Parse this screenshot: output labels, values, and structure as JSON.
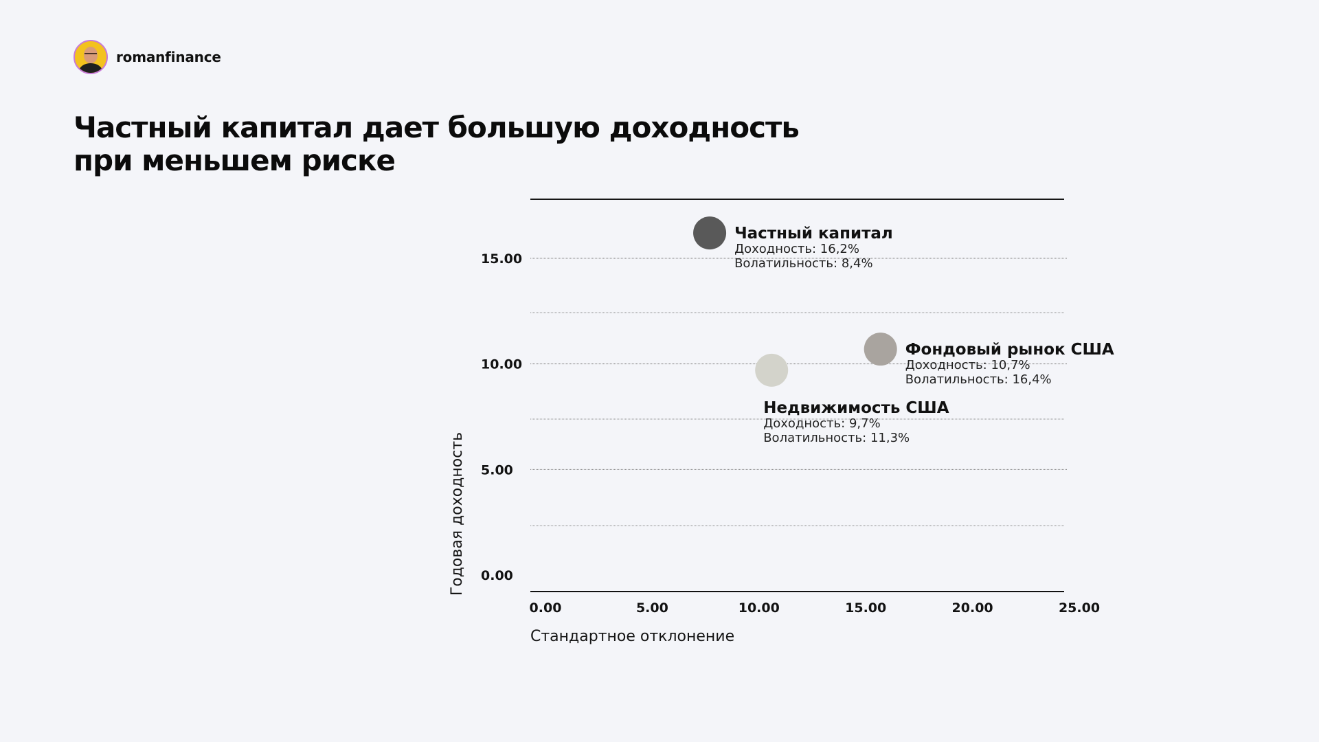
{
  "brand": {
    "name": "romanfinance"
  },
  "title": {
    "line1": "Частный капитал дает большую доходность",
    "line2": "при меньшем риске"
  },
  "chart_data": {
    "type": "scatter",
    "xlabel": "Стандартное отклонение",
    "ylabel": "Годовая доходность",
    "xlim": [
      0,
      25
    ],
    "ylim": [
      0,
      18.5
    ],
    "x_ticks": [
      "0.00",
      "5.00",
      "10.00",
      "15.00",
      "20.00",
      "25.00"
    ],
    "y_ticks": [
      "0.00",
      "5.00",
      "10.00",
      "15.00"
    ],
    "grid": true,
    "points": [
      {
        "name": "Частный капитал",
        "x": 8.4,
        "y": 16.2,
        "color": "#595959",
        "label_position": "right",
        "lines": [
          "Доходность: 16,2%",
          "Волатильность: 8,4%"
        ]
      },
      {
        "name": "Фондовый рынок США",
        "x": 16.4,
        "y": 10.7,
        "color": "#a9a49f",
        "label_position": "right",
        "lines": [
          "Доходность: 10,7%",
          "Волатильность: 16,4%"
        ]
      },
      {
        "name": "Недвижимость США",
        "x": 11.3,
        "y": 9.7,
        "color": "#d3d3cb",
        "label_position": "below",
        "lines": [
          "Доходность: 9,7%",
          "Волатильность: 11,3%"
        ]
      }
    ]
  }
}
